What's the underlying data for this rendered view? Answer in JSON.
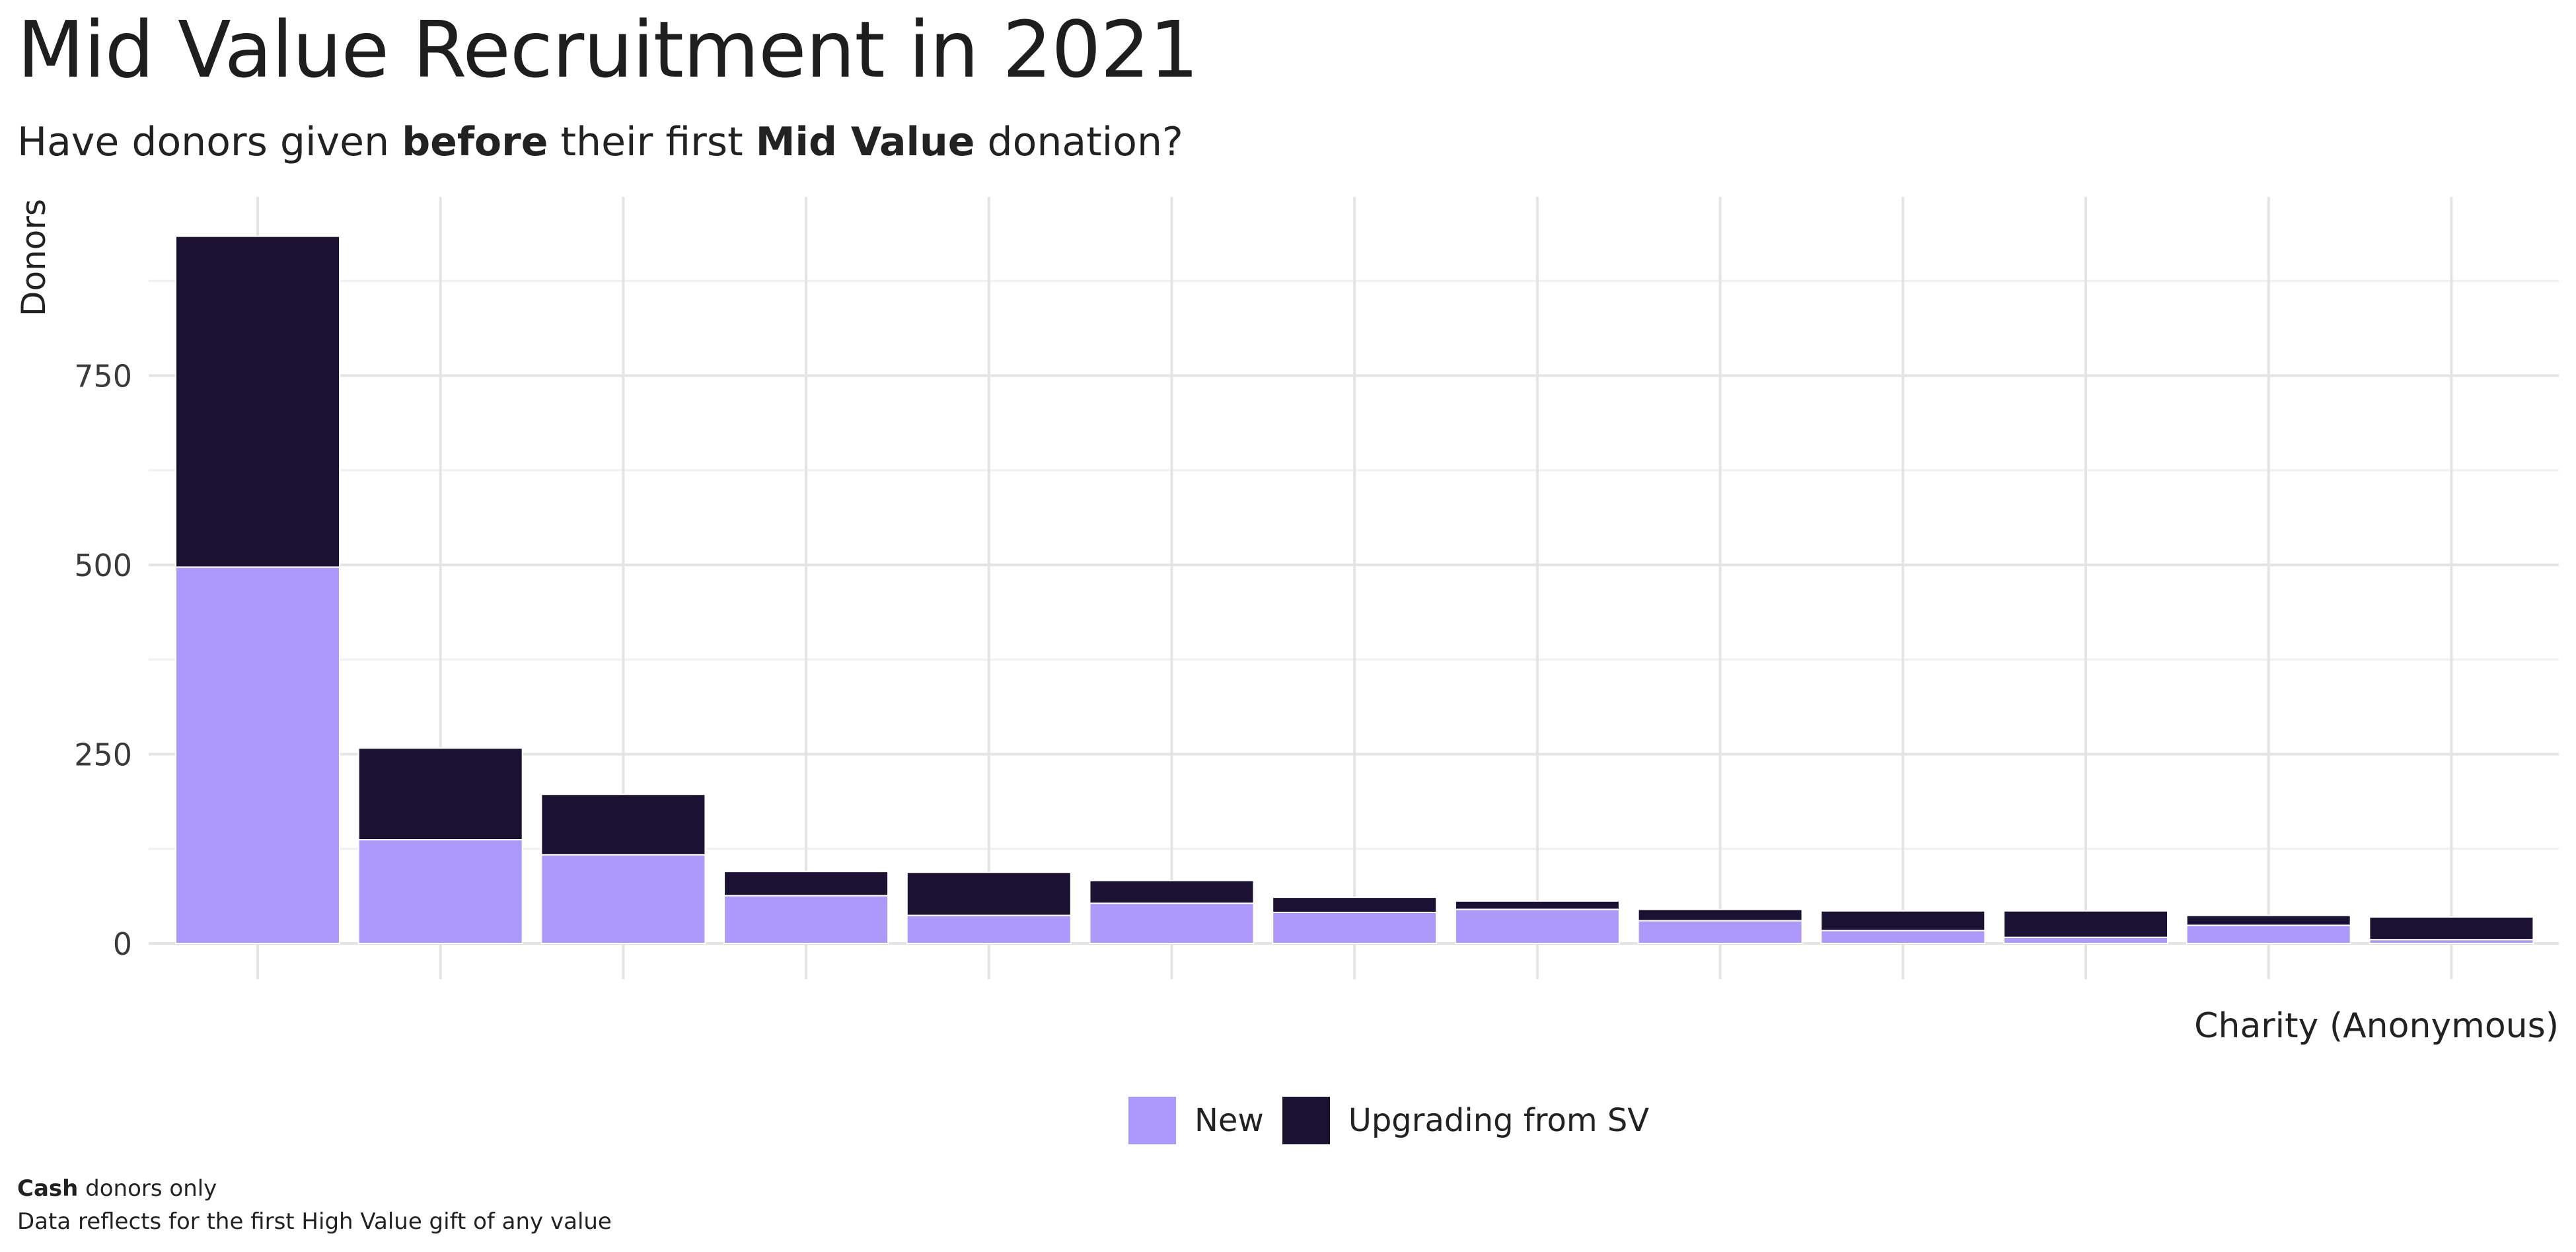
{
  "header": {
    "title": "Mid Value Recruitment in 2021",
    "subtitle_parts": [
      "Have donors given ",
      "before",
      " their first ",
      "Mid Value",
      " donation?"
    ]
  },
  "caption": {
    "line1_bold": "Cash",
    "line1_rest": " donors only",
    "line2": "Data reflects for the first High Value gift of any value"
  },
  "colors": {
    "new": "#ac99fa",
    "upgrading": "#1b1133",
    "grid_major": "#e4e4e4",
    "grid_minor": "#f0f0f0",
    "tick_text": "#3a3a3a"
  },
  "chart_data": {
    "type": "bar",
    "stacked": true,
    "title": "Mid Value Recruitment in 2021",
    "subtitle": "Have donors given before their first Mid Value donation?",
    "xlabel": "Charity (Anonymous)",
    "ylabel": "Donors",
    "ylim": [
      0,
      960
    ],
    "yticks": [
      0,
      250,
      500,
      750
    ],
    "grid": true,
    "legend_position": "bottom",
    "categories": [
      "",
      "",
      "",
      "",
      "",
      "",
      "",
      "",
      "",
      "",
      "",
      "",
      ""
    ],
    "series": [
      {
        "name": "New",
        "values": [
          497,
          137,
          117,
          63,
          37,
          53,
          41,
          45,
          30,
          17,
          8,
          24,
          5
        ]
      },
      {
        "name": "Upgrading from SV",
        "values": [
          437,
          121,
          80,
          32,
          57,
          30,
          20,
          11,
          15,
          26,
          35,
          13,
          30
        ]
      }
    ]
  }
}
